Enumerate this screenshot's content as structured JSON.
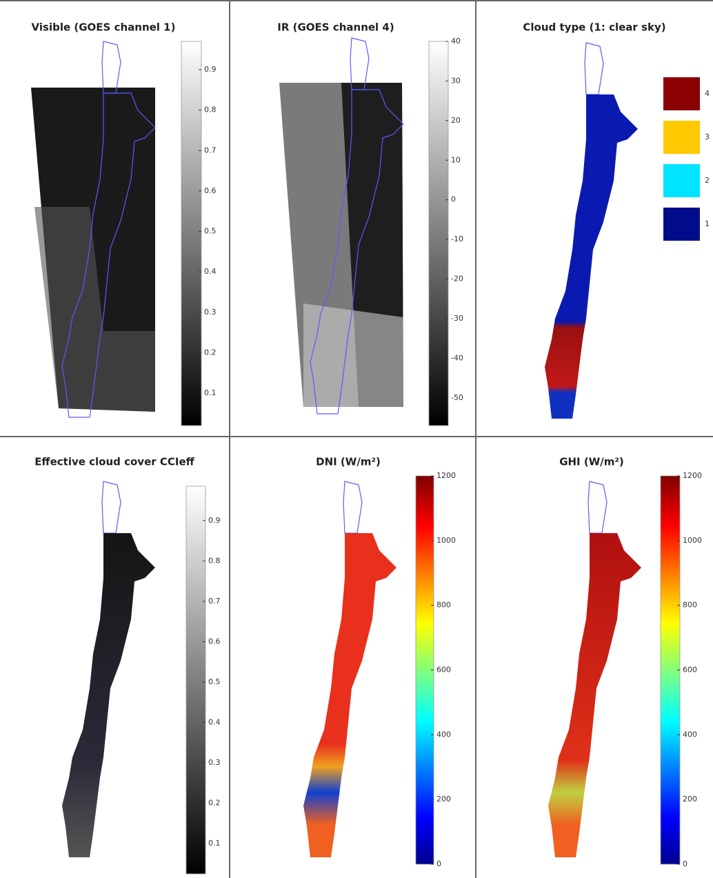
{
  "panels": [
    {
      "title": "Visible (GOES channel 1)",
      "colorbar": {
        "colormap": "gray",
        "lim": [
          0.02,
          0.97
        ],
        "ticks": [
          0.1,
          0.2,
          0.3,
          0.4,
          0.5,
          0.6,
          0.7,
          0.8,
          0.9
        ]
      }
    },
    {
      "title": "IR   (GOES channel 4)",
      "colorbar": {
        "colormap": "gray",
        "lim": [
          -57,
          40
        ],
        "ticks": [
          -50,
          -40,
          -30,
          -20,
          -10,
          0,
          10,
          20,
          30,
          40
        ]
      }
    },
    {
      "title": "Cloud type (1: clear sky)",
      "legend": [
        {
          "label": 4,
          "color": "#8b0000"
        },
        {
          "label": 3,
          "color": "#ffc800"
        },
        {
          "label": 2,
          "color": "#00e5ff"
        },
        {
          "label": 1,
          "color": "#000c8c"
        }
      ]
    },
    {
      "title": "Effective cloud cover CCIeff",
      "colorbar": {
        "colormap": "gray",
        "lim": [
          0.025,
          0.985
        ],
        "ticks": [
          0.1,
          0.2,
          0.3,
          0.4,
          0.5,
          0.6,
          0.7,
          0.8,
          0.9
        ]
      }
    },
    {
      "title": "DNI (W/m²)",
      "colorbar": {
        "colormap": "jet",
        "lim": [
          0,
          1200
        ],
        "ticks": [
          0,
          200,
          400,
          600,
          800,
          1000,
          1200
        ]
      }
    },
    {
      "title": "GHI (W/m²)",
      "colorbar": {
        "colormap": "jet",
        "lim": [
          0,
          1200
        ],
        "ticks": [
          0,
          200,
          400,
          600,
          800,
          1000,
          1200
        ]
      }
    }
  ]
}
